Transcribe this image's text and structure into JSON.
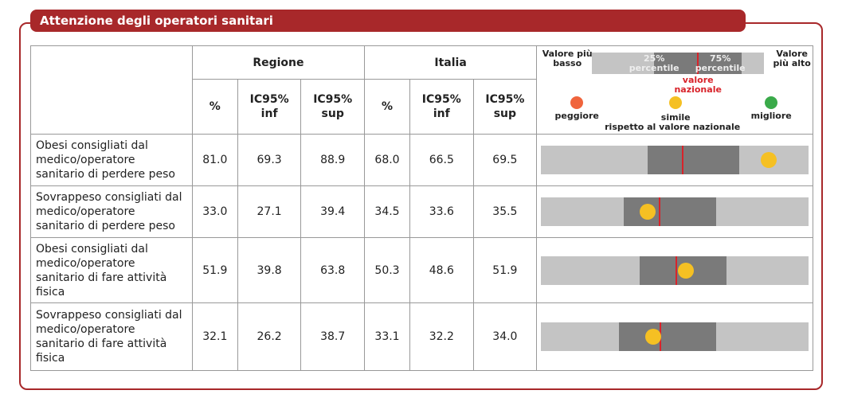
{
  "header": {
    "title": "Attenzione degli operatori sanitari"
  },
  "table": {
    "groups": [
      "Regione",
      "Italia"
    ],
    "columns": [
      "%",
      "IC95% inf",
      "IC95% sup",
      "%",
      "IC95% inf",
      "IC95% sup"
    ],
    "legend": {
      "low": "Valore più basso",
      "high": "Valore più alto",
      "p25": "25% percentile",
      "p75": "75% percentile",
      "national": "valore nazionale",
      "worse": "peggiore",
      "similar": "simile",
      "similar_note": "rispetto al valore nazionale",
      "better": "migliore",
      "colors": {
        "worse": "#f0643c",
        "similar": "#f5c023",
        "better": "#3aaa4a"
      }
    },
    "rows": [
      {
        "label": "Obesi consigliati dal medico/operatore sanitario di perdere peso",
        "cells": [
          "81.0",
          "69.3",
          "88.9",
          "68.0",
          "66.5",
          "69.5"
        ],
        "bar": {
          "p25": 39.8,
          "p75": 74.0,
          "national": 52.9,
          "region": 85.1,
          "color": "#f5c023"
        }
      },
      {
        "label": "Sovrappeso consigliati dal medico/operatore sanitario di perdere peso",
        "cells": [
          "33.0",
          "27.1",
          "39.4",
          "34.5",
          "33.6",
          "35.5"
        ],
        "bar": {
          "p25": 31.0,
          "p75": 65.5,
          "national": 44.4,
          "region": 39.8,
          "color": "#f5c023"
        }
      },
      {
        "label": "Obesi consigliati dal medico/operatore sanitario di fare attività fisica",
        "cells": [
          "51.9",
          "39.8",
          "63.8",
          "50.3",
          "48.6",
          "51.9"
        ],
        "bar": {
          "p25": 36.8,
          "p75": 69.3,
          "national": 50.6,
          "region": 54.1,
          "color": "#f5c023"
        }
      },
      {
        "label": "Sovrappeso consigliati dal medico/operatore sanitario di fare attività fisica",
        "cells": [
          "32.1",
          "26.2",
          "38.7",
          "33.1",
          "32.2",
          "34.0"
        ],
        "bar": {
          "p25": 29.2,
          "p75": 65.5,
          "national": 44.7,
          "region": 41.8,
          "color": "#f5c023"
        }
      }
    ]
  }
}
